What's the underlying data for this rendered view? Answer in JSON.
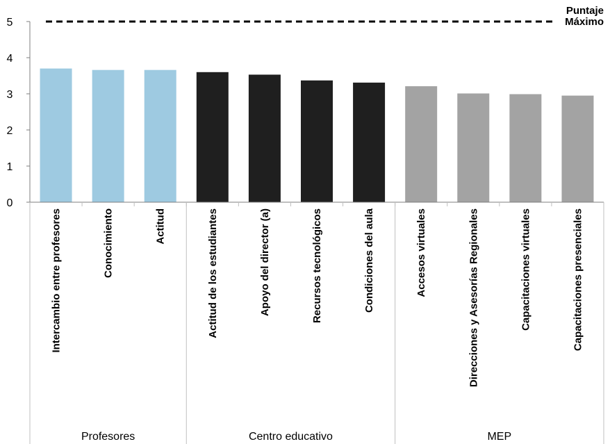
{
  "chart_data": {
    "type": "bar",
    "title": "",
    "xlabel": "",
    "ylabel": "",
    "ylim": [
      0,
      5
    ],
    "yticks": [
      "0",
      "1",
      "2",
      "3",
      "4",
      "5"
    ],
    "grid": false,
    "categories": [
      "Intercambio entre profesores",
      "Conocimiento",
      "Actitud",
      "Actitud de los estudiantes",
      "Apoyo del director (a)",
      "Recursos tecnológicos",
      "Condiciones del aula",
      "Accesos virtuales",
      "Direcciones y Asesorías Regionales",
      "Capacitaciones virtuales",
      "Capacitaciones presenciales"
    ],
    "values": [
      3.7,
      3.66,
      3.66,
      3.6,
      3.53,
      3.37,
      3.31,
      3.21,
      3.01,
      2.99,
      2.95
    ],
    "groups": [
      {
        "name": "Profesores",
        "count": 3,
        "color": "#9ecae1"
      },
      {
        "name": "Centro educativo",
        "count": 4,
        "color": "#1f1f1f"
      },
      {
        "name": "MEP",
        "count": 4,
        "color": "#a3a3a3"
      }
    ],
    "reference_line": {
      "value": 5,
      "label_lines": [
        "Puntaje",
        "Máximo"
      ],
      "style": "dashed"
    }
  }
}
